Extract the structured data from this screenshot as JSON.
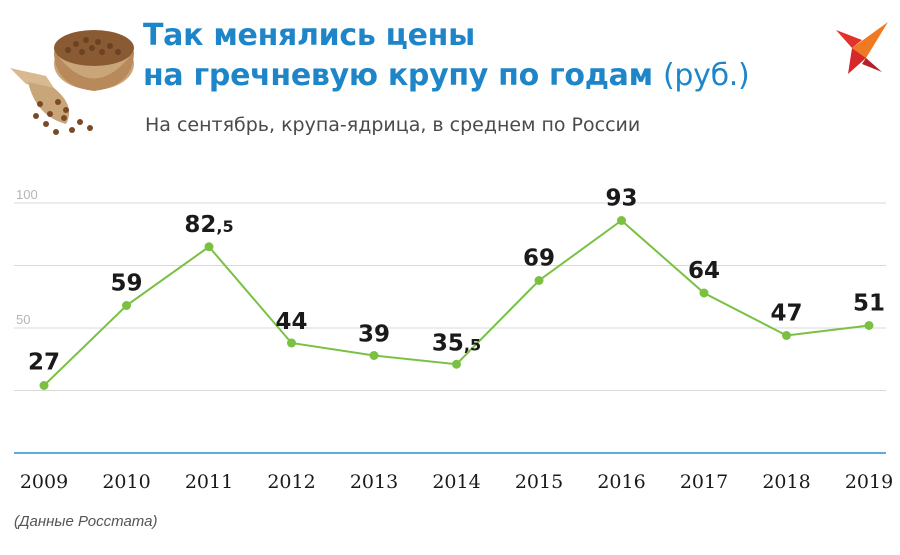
{
  "header": {
    "title_line1": "Так менялись цены",
    "title_line2": "на гречневую крупу по годам",
    "title_unit": "(руб.)",
    "subtitle": "На сентябрь, крупа-ядрица, в среднем по России"
  },
  "source": "(Данные Росстата)",
  "logo": {
    "icon": "bird-logo-icon"
  },
  "colors": {
    "title": "#1e86c8",
    "line": "#7ac143",
    "baseline": "#2a8fd0",
    "grid": "#d9d9d9"
  },
  "chart_data": {
    "type": "line",
    "title": "Так менялись цены на гречневую крупу по годам (руб.)",
    "subtitle": "На сентябрь, крупа-ядрица, в среднем по России",
    "categories": [
      "2009",
      "2010",
      "2011",
      "2012",
      "2013",
      "2014",
      "2015",
      "2016",
      "2017",
      "2018",
      "2019"
    ],
    "values": [
      27,
      59,
      82.5,
      44,
      39,
      35.5,
      69,
      93,
      64,
      47,
      51
    ],
    "labels": [
      {
        "main": "27",
        "frac": ""
      },
      {
        "main": "59",
        "frac": ""
      },
      {
        "main": "82",
        "frac": ",5"
      },
      {
        "main": "44",
        "frac": ""
      },
      {
        "main": "39",
        "frac": ""
      },
      {
        "main": "35",
        "frac": ",5"
      },
      {
        "main": "69",
        "frac": ""
      },
      {
        "main": "93",
        "frac": ""
      },
      {
        "main": "64",
        "frac": ""
      },
      {
        "main": "47",
        "frac": ""
      },
      {
        "main": "51",
        "frac": ""
      }
    ],
    "yticks": [
      {
        "value": 100,
        "label": "100"
      },
      {
        "value": 75,
        "label": ""
      },
      {
        "value": 50,
        "label": "50"
      },
      {
        "value": 25,
        "label": ""
      }
    ],
    "ylim": [
      0,
      100
    ],
    "grid": true,
    "xlabel": "",
    "ylabel": ""
  }
}
